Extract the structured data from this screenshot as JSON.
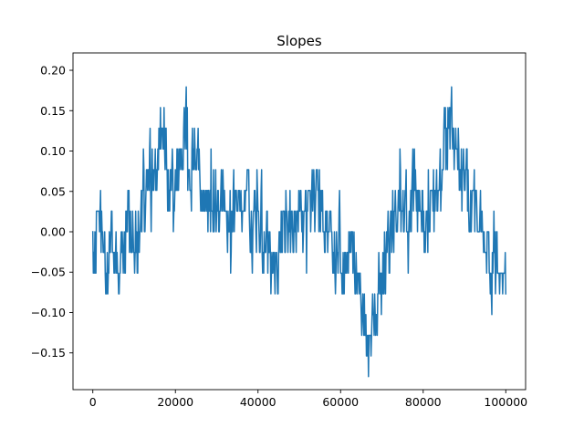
{
  "chart_data": {
    "type": "line",
    "title": "Slopes",
    "xlabel": "",
    "ylabel": "",
    "xlim": [
      -4800,
      104800
    ],
    "ylim": [
      -0.1955,
      0.2215
    ],
    "xticks": [
      0,
      20000,
      40000,
      60000,
      80000,
      100000
    ],
    "xtick_labels": [
      "0",
      "20000",
      "40000",
      "60000",
      "80000",
      "100000"
    ],
    "yticks": [
      -0.15,
      -0.1,
      -0.05,
      0.0,
      0.05,
      0.1,
      0.15,
      0.2
    ],
    "ytick_labels": [
      "−0.15",
      "−0.10",
      "−0.05",
      "0.00",
      "0.05",
      "0.10",
      "0.15",
      "0.20"
    ],
    "grid": false,
    "legend": "none",
    "series": [
      {
        "color": "#1f77b4",
        "note_step": 0.0256,
        "x": [
          0,
          1000,
          2000,
          3000,
          4000,
          5000,
          6000,
          7000,
          8000,
          9000,
          10000,
          11000,
          12000,
          13000,
          14000,
          15000,
          16000,
          17000,
          18000,
          19000,
          20000,
          21000,
          22000,
          23000,
          24000,
          25000,
          26000,
          27000,
          28000,
          29000,
          30000,
          31000,
          32000,
          33000,
          34000,
          35000,
          36000,
          37000,
          38000,
          39000,
          40000,
          41000,
          42000,
          43000,
          44000,
          45000,
          46000,
          47000,
          48000,
          49000,
          50000,
          51000,
          52000,
          53000,
          54000,
          55000,
          56000,
          57000,
          58000,
          59000,
          60000,
          61000,
          62000,
          63000,
          64000,
          65000,
          66000,
          67000,
          68000,
          69000,
          70000,
          71000,
          72000,
          73000,
          74000,
          75000,
          76000,
          77000,
          78000,
          79000,
          80000,
          81000,
          82000,
          83000,
          84000,
          85000,
          86000,
          87000,
          88000,
          89000,
          90000,
          91000,
          92000,
          93000,
          94000,
          95000,
          96000,
          97000,
          98000,
          99000,
          100000
        ],
        "y": [
          0.0,
          0.0256,
          -0.0256,
          -0.0513,
          0.0,
          -0.0256,
          -0.0513,
          -0.0256,
          0.0256,
          0.0,
          -0.0256,
          0.0256,
          0.0513,
          0.0769,
          0.0513,
          0.0769,
          0.1282,
          0.1026,
          0.0769,
          0.0513,
          0.0769,
          0.1026,
          0.1282,
          0.0513,
          0.1026,
          0.0769,
          0.0513,
          0.0256,
          0.0513,
          0.0256,
          0.0256,
          0.0513,
          0.0256,
          0.0,
          0.0513,
          0.0256,
          0.0256,
          0.0513,
          0.0,
          0.0256,
          0.0256,
          -0.0256,
          0.0,
          -0.0256,
          -0.0513,
          -0.0256,
          0.0256,
          0.0256,
          0.0,
          0.0256,
          0.0256,
          0.0,
          0.0256,
          0.0513,
          0.0513,
          0.0256,
          0.0,
          0.0,
          -0.0256,
          0.0,
          -0.0513,
          -0.0256,
          0.0,
          -0.0513,
          -0.0769,
          -0.1026,
          -0.1282,
          -0.1282,
          -0.1026,
          -0.0769,
          -0.0513,
          -0.0256,
          0.0,
          0.0256,
          0.0513,
          0.0256,
          0.0,
          0.0513,
          0.0513,
          0.0256,
          0.0,
          0.0256,
          0.0513,
          0.0513,
          0.0769,
          0.1282,
          0.1538,
          0.1282,
          0.1026,
          0.0769,
          0.0513,
          0.0256,
          0.0513,
          0.0256,
          0.0,
          -0.0256,
          -0.0513,
          -0.0256,
          -0.0513,
          -0.0513,
          -0.0769
        ]
      }
    ]
  }
}
